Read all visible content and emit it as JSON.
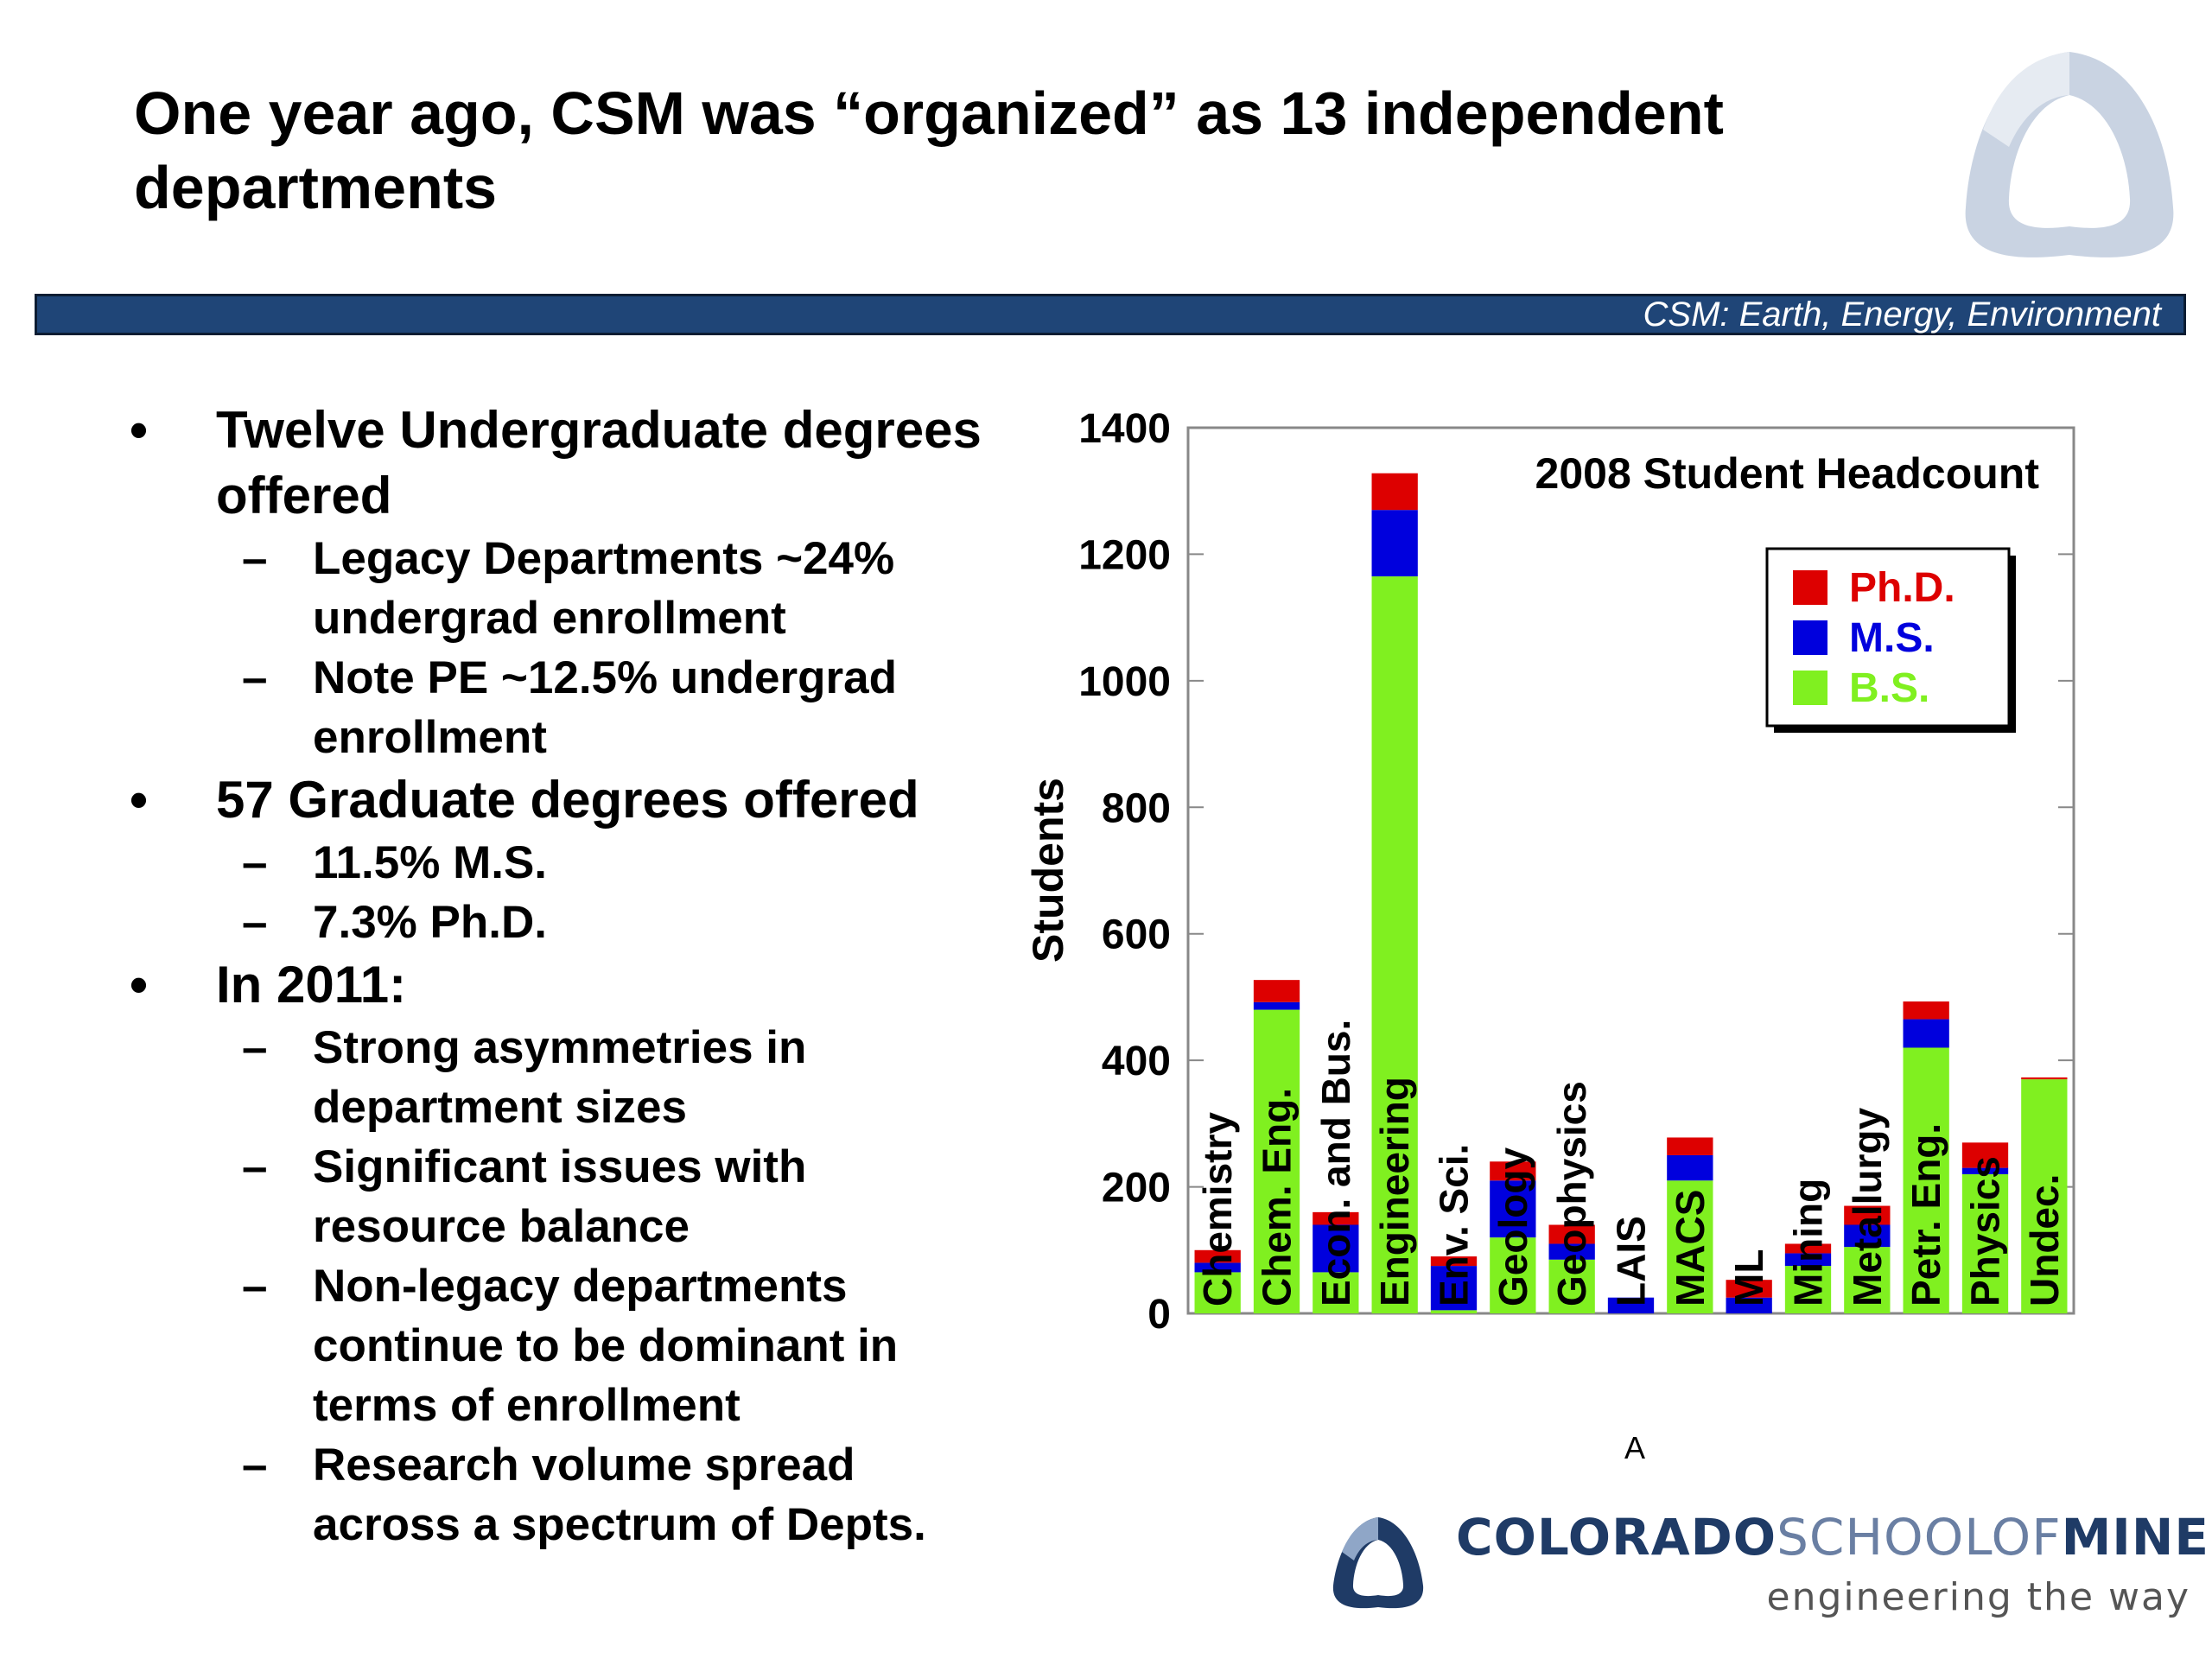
{
  "slide": {
    "title": "One year ago, CSM was “organized” as 13 independent departments",
    "banner_text": "CSM: Earth, Energy, Environment",
    "figure_label": "A",
    "bullets": [
      {
        "text": "Twelve Undergraduate degrees offered",
        "subs": [
          "Legacy Departments ~24% undergrad enrollment",
          "Note PE ~12.5% undergrad enrollment"
        ]
      },
      {
        "text": "57 Graduate degrees offered",
        "subs": [
          "11.5% M.S.",
          "7.3% Ph.D."
        ]
      },
      {
        "text": "In 2011:",
        "subs": [
          "Strong asymmetries in department sizes",
          "Significant issues with resource balance",
          "Non-legacy departments continue to be dominant in terms of enrollment",
          "Research volume spread across a spectrum of Depts."
        ]
      }
    ],
    "footer": {
      "wordmark_colorado": "COLORADO",
      "wordmark_school_of": "SCHOOLOF",
      "wordmark_mines": "MINES",
      "tagline": "engineering the way",
      "logo_icon": "csm-triangle-logo-icon"
    }
  },
  "chart_data": {
    "type": "bar",
    "stacked": true,
    "title": "2008 Student Headcount",
    "xlabel": "",
    "ylabel": "Students",
    "ylim": [
      0,
      1400
    ],
    "yticks": [
      0,
      200,
      400,
      600,
      800,
      1000,
      1200,
      1400
    ],
    "legend_position": "top-right",
    "categories": [
      "Chemistry",
      "Chem. Eng.",
      "Econ. and Bus.",
      "Engineering",
      "Env. Sci.",
      "Geology",
      "Geophysics",
      "LAIS",
      "MACS",
      "ML",
      "Mining",
      "Metallurgy",
      "Petr. Eng.",
      "Physics",
      "Undec."
    ],
    "series": [
      {
        "name": "B.S.",
        "color": "#80f020",
        "values": [
          65,
          480,
          65,
          1165,
          5,
          120,
          85,
          0,
          210,
          0,
          75,
          105,
          420,
          220,
          370
        ]
      },
      {
        "name": "M.S.",
        "color": "#0000dd",
        "values": [
          15,
          12,
          75,
          105,
          70,
          90,
          25,
          25,
          40,
          25,
          20,
          35,
          45,
          10,
          0
        ]
      },
      {
        "name": "Ph.D.",
        "color": "#dd0000",
        "values": [
          20,
          35,
          20,
          58,
          15,
          30,
          30,
          0,
          28,
          28,
          15,
          30,
          28,
          40,
          3
        ]
      }
    ]
  }
}
